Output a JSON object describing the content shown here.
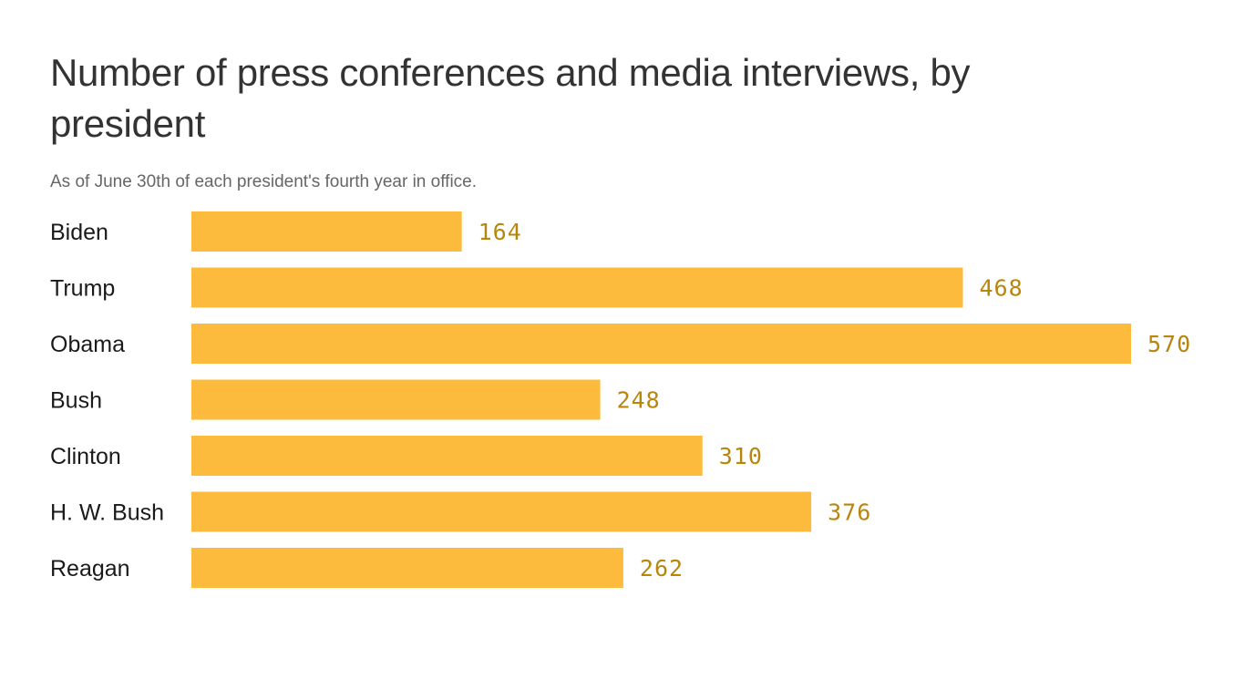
{
  "chart_data": {
    "type": "bar",
    "orientation": "horizontal",
    "title": "Number of press conferences and media interviews, by president",
    "subtitle": "As of June 30th of each president's fourth year in office.",
    "categories": [
      "Biden",
      "Trump",
      "Obama",
      "Bush",
      "Clinton",
      "H. W. Bush",
      "Reagan"
    ],
    "values": [
      164,
      468,
      570,
      248,
      310,
      376,
      262
    ],
    "xlim": [
      0,
      570
    ],
    "grid": false,
    "legend": "none",
    "bar_color": "#fdbb3d",
    "value_label_color": "#b8860b"
  }
}
